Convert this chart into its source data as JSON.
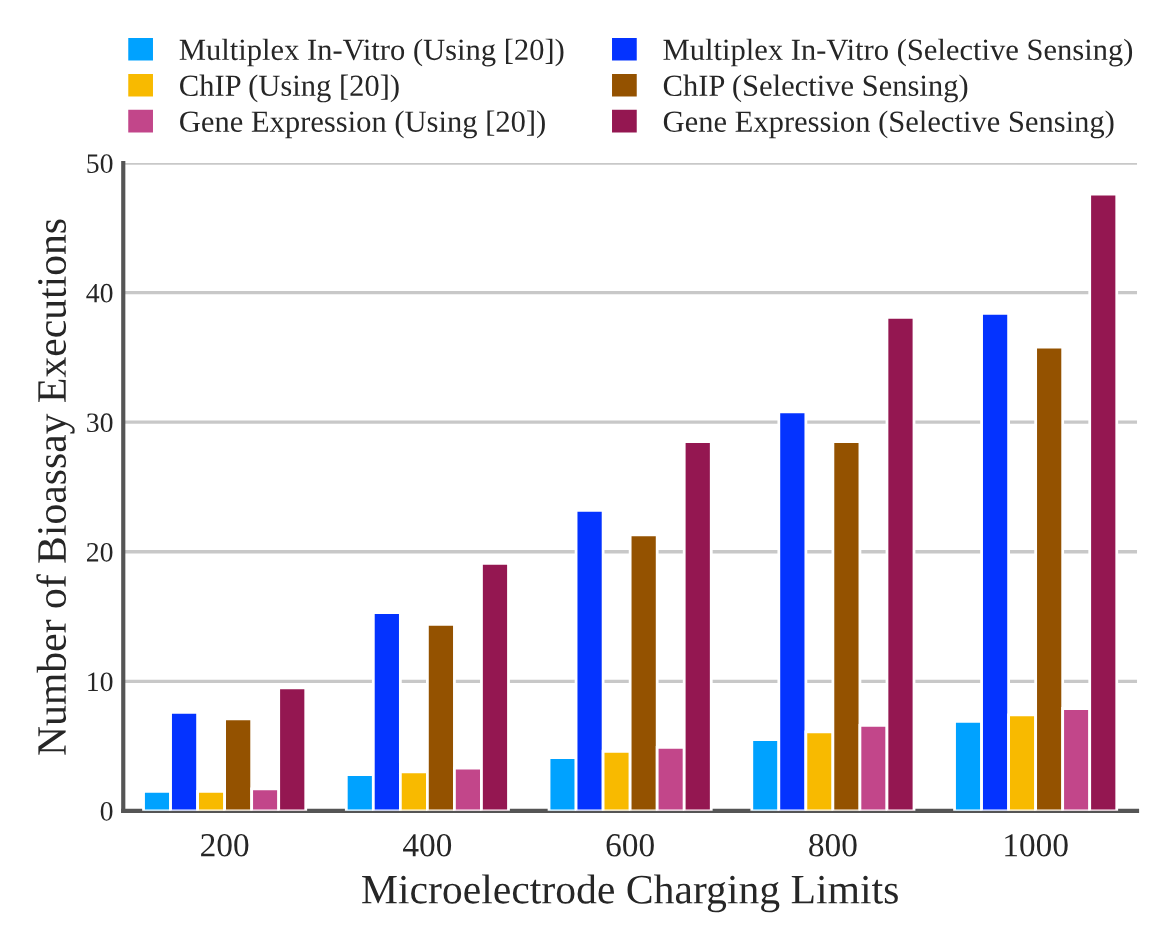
{
  "chart_data": {
    "type": "bar",
    "xlabel": "Microelectrode Charging Limits",
    "ylabel": "Number of Bioassay Executions",
    "categories": [
      "200",
      "400",
      "600",
      "800",
      "1000"
    ],
    "series": [
      {
        "name": "Multiplex In-Vitro (Using [20])",
        "color": "#00a2ff",
        "values": [
          1.5,
          2.8,
          4.1,
          5.5,
          6.9
        ]
      },
      {
        "name": "Multiplex In-Vitro (Selective Sensing)",
        "color": "#0433ff",
        "values": [
          7.6,
          15.3,
          23.2,
          30.8,
          38.4
        ]
      },
      {
        "name": "ChIP (Using [20])",
        "color": "#f8ba00",
        "values": [
          1.5,
          3.0,
          4.6,
          6.1,
          7.4
        ]
      },
      {
        "name": "ChIP (Selective Sensing)",
        "color": "#945200",
        "values": [
          7.1,
          14.4,
          21.3,
          28.5,
          35.8
        ]
      },
      {
        "name": "Gene Expression (Using [20])",
        "color": "#c2468a",
        "values": [
          1.7,
          3.3,
          4.9,
          6.6,
          7.9
        ]
      },
      {
        "name": "Gene Expression (Selective Sensing)",
        "color": "#941751",
        "values": [
          9.5,
          19.1,
          28.5,
          38.1,
          47.6
        ]
      }
    ],
    "ylim": [
      0,
      50
    ],
    "yticks": [
      0,
      10,
      20,
      30,
      40,
      50
    ],
    "grid": "y",
    "legend": "top"
  }
}
